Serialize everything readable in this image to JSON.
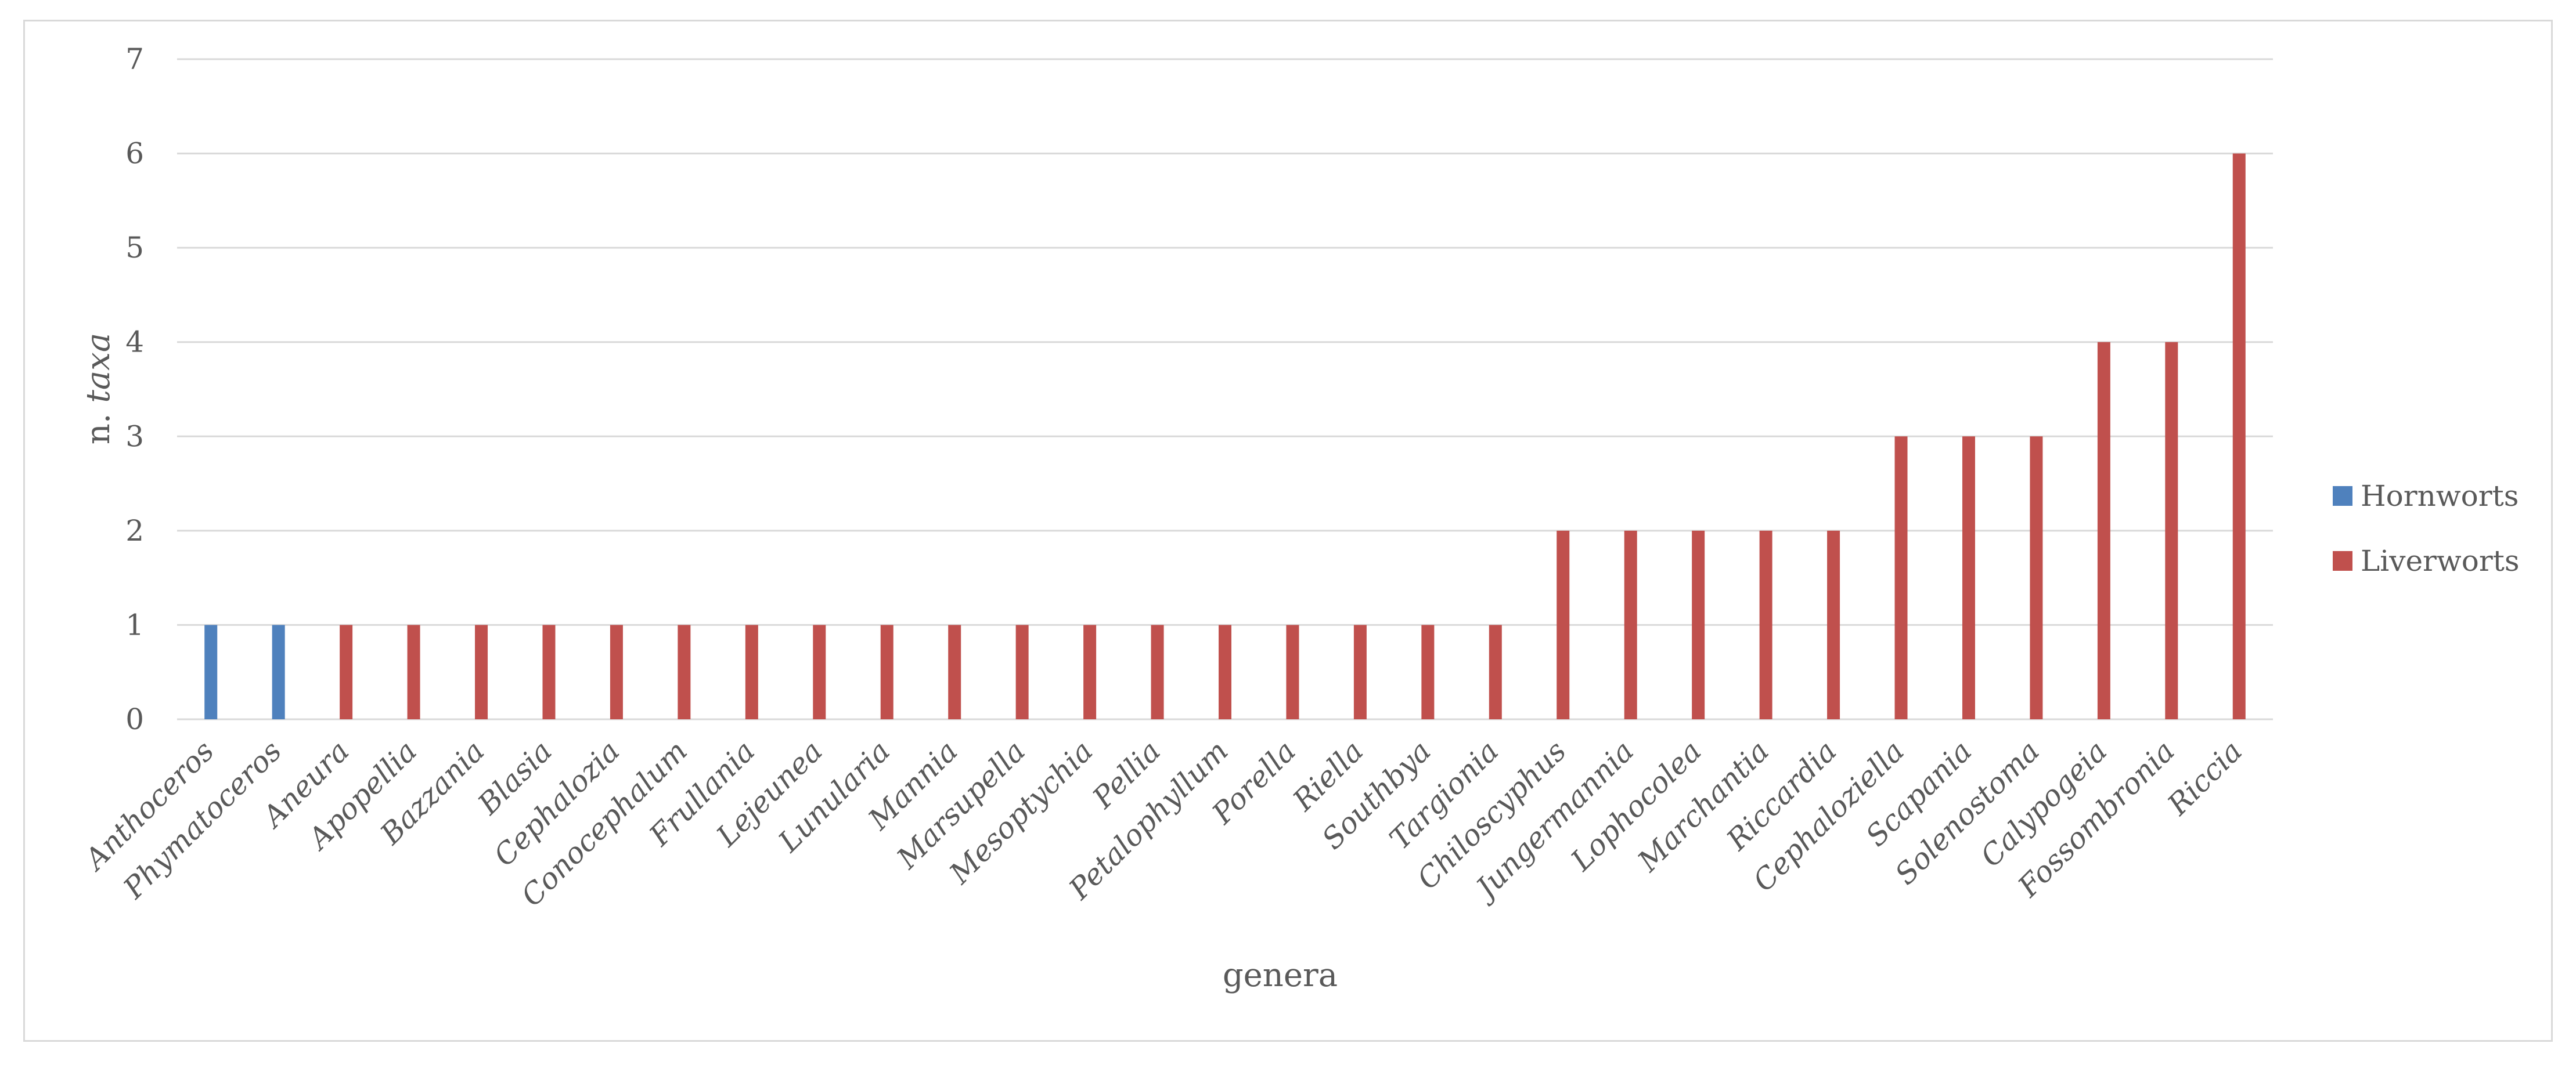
{
  "chart_data": {
    "type": "bar",
    "title": "",
    "xlabel": "genera",
    "ylabel_prefix": "n.",
    "ylabel_italic": "taxa",
    "ylim": [
      0,
      7
    ],
    "yticks": [
      "0",
      "1",
      "2",
      "3",
      "4",
      "5",
      "6",
      "7"
    ],
    "grid": true,
    "legend_position": "right",
    "categories": [
      "Anthoceros",
      "Phymatoceros",
      "Aneura",
      "Apopellia",
      "Bazzania",
      "Blasia",
      "Cephalozia",
      "Conocephalum",
      "Frullania",
      "Lejeunea",
      "Lunularia",
      "Mannia",
      "Marsupella",
      "Mesoptychia",
      "Pellia",
      "Petalophyllum",
      "Porella",
      "Riella",
      "Southbya",
      "Targionia",
      "Chiloscyphus",
      "Jungermannia",
      "Lophocolea",
      "Marchantia",
      "Riccardia",
      "Cephaloziella",
      "Scapania",
      "Solenostoma",
      "Calypogeia",
      "Fossombronia",
      "Riccia"
    ],
    "series": [
      {
        "name": "Hornworts",
        "color": "#4f81bd",
        "values": [
          1,
          1,
          null,
          null,
          null,
          null,
          null,
          null,
          null,
          null,
          null,
          null,
          null,
          null,
          null,
          null,
          null,
          null,
          null,
          null,
          null,
          null,
          null,
          null,
          null,
          null,
          null,
          null,
          null,
          null,
          null
        ]
      },
      {
        "name": "Liverworts",
        "color": "#c0504d",
        "values": [
          null,
          null,
          1,
          1,
          1,
          1,
          1,
          1,
          1,
          1,
          1,
          1,
          1,
          1,
          1,
          1,
          1,
          1,
          1,
          1,
          2,
          2,
          2,
          2,
          2,
          3,
          3,
          3,
          4,
          4,
          6
        ]
      }
    ]
  }
}
